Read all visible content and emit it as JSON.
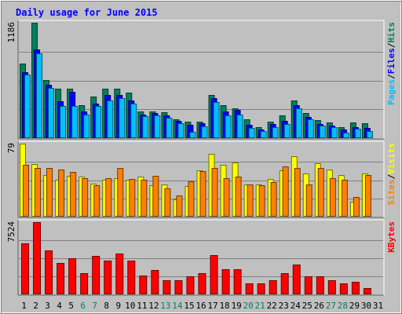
{
  "colors": {
    "background": "#c0c0c0",
    "title": "#0000ff",
    "hits": "#00805c",
    "files": "#0000ff",
    "pages": "#00c0ff",
    "visits": "#ffff00",
    "sites": "#ff8000",
    "kbytes": "#ff0000",
    "weekend_label": "#00805c",
    "day_label": "#000000"
  },
  "chart_data": {
    "type": "bar",
    "title": "Daily usage for June 2015",
    "categories": [
      "1",
      "2",
      "3",
      "4",
      "5",
      "6",
      "7",
      "8",
      "9",
      "10",
      "11",
      "12",
      "13",
      "14",
      "15",
      "16",
      "17",
      "18",
      "19",
      "20",
      "21",
      "22",
      "23",
      "24",
      "25",
      "26",
      "27",
      "28",
      "29",
      "30",
      "31"
    ],
    "weekend_days": [
      "6",
      "7",
      "13",
      "14",
      "20",
      "21",
      "27",
      "28"
    ],
    "panels": [
      {
        "id": "hits-files-pages",
        "ymax_label": "1186",
        "ymax": 1186,
        "legend": [
          "Pages",
          "/",
          "Files",
          "/",
          "Hits"
        ],
        "series": [
          {
            "name": "Hits",
            "values": [
              765,
              1186,
              595,
              510,
              510,
              340,
              425,
              510,
              510,
              467,
              272,
              272,
              264,
              195,
              170,
              170,
              442,
              340,
              306,
              195,
              110,
              170,
              238,
              391,
              255,
              187,
              161,
              110,
              161,
              153,
              0
            ]
          },
          {
            "name": "Files",
            "values": [
              680,
              909,
              552,
              382,
              476,
              272,
              357,
              442,
              442,
              391,
              246,
              255,
              238,
              178,
              136,
              153,
              408,
              272,
              289,
              136,
              85,
              145,
              178,
              340,
              221,
              145,
              127,
              85,
              110,
              102,
              0
            ]
          },
          {
            "name": "Pages",
            "values": [
              654,
              875,
              518,
              331,
              331,
              246,
              331,
              391,
              408,
              357,
              229,
              238,
              212,
              153,
              68,
              119,
              374,
              238,
              246,
              102,
              76,
              110,
              144,
              306,
              195,
              128,
              110,
              59,
              93,
              76,
              0
            ]
          }
        ]
      },
      {
        "id": "visits-sites",
        "ymax_label": "79",
        "ymax": 79,
        "legend": [
          "Sites",
          "/",
          "Visits"
        ],
        "series": [
          {
            "name": "Visits",
            "values": [
              79,
              57,
              45,
              40,
              44,
              43,
              36,
              40,
              42,
              40,
              43,
              34,
              35,
              19,
              33,
              50,
              68,
              56,
              59,
              35,
              35,
              41,
              50,
              65,
              47,
              58,
              51,
              45,
              16,
              47,
              0
            ]
          },
          {
            "name": "Sites",
            "values": [
              56,
              53,
              53,
              51,
              48,
              42,
              34,
              42,
              53,
              41,
              40,
              44,
              31,
              23,
              38,
              49,
              53,
              42,
              43,
              35,
              34,
              37,
              54,
              53,
              35,
              53,
              42,
              40,
              21,
              45,
              0
            ]
          }
        ]
      },
      {
        "id": "kbytes",
        "ymax_label": "7524",
        "ymax": 7524,
        "legend": [
          "KBytes"
        ],
        "series": [
          {
            "name": "KBytes",
            "values": [
              5315,
              7524,
              4581,
              3283,
              3787,
              2230,
              4009,
              3491,
              4226,
              3491,
              1956,
              2511,
              1486,
              1486,
              1856,
              2230,
              4081,
              2631,
              2631,
              1114,
              1114,
              1486,
              2230,
              3087,
              1856,
              1856,
              1486,
              1114,
              1297,
              672,
              0
            ]
          }
        ]
      }
    ]
  }
}
